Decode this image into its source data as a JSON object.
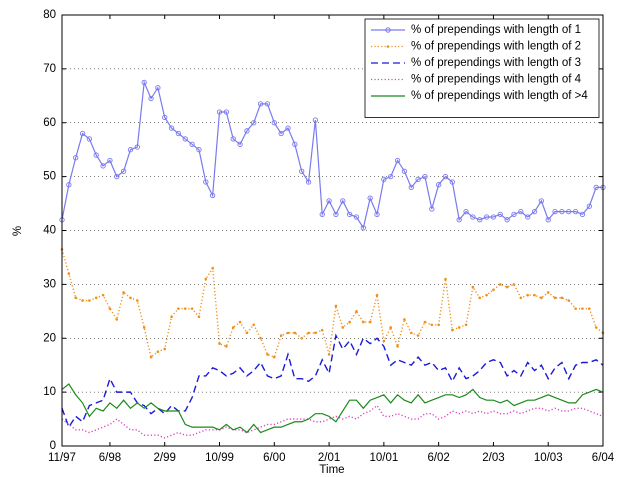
{
  "chart_data": {
    "type": "line",
    "x_label": "Time",
    "y_label": "%",
    "categories": [
      "11/97",
      null,
      null,
      null,
      null,
      null,
      null,
      "6/98",
      null,
      null,
      null,
      null,
      null,
      null,
      null,
      "2/99",
      null,
      null,
      null,
      null,
      null,
      null,
      null,
      "10/99",
      null,
      null,
      null,
      null,
      null,
      null,
      null,
      "6/00",
      null,
      null,
      null,
      null,
      null,
      null,
      null,
      "2/01",
      null,
      null,
      null,
      null,
      null,
      null,
      null,
      "10/01",
      null,
      null,
      null,
      null,
      null,
      null,
      null,
      "6/02",
      null,
      null,
      null,
      null,
      null,
      null,
      null,
      "2/03",
      null,
      null,
      null,
      null,
      null,
      null,
      null,
      "10/03",
      null,
      null,
      null,
      null,
      null,
      null,
      null,
      "6/04"
    ],
    "ylim": [
      0,
      80
    ],
    "yticks": [
      0,
      10,
      20,
      30,
      40,
      50,
      60,
      70,
      80
    ],
    "grid": true,
    "legend": "top-right",
    "series": [
      {
        "name": "% of prependings with length of 1",
        "color": "#7a7af0",
        "line_style": "solid",
        "marker": "circle",
        "values": [
          42,
          48.5,
          53.5,
          58,
          57,
          54,
          52,
          53,
          50,
          51,
          55,
          55.5,
          67.5,
          64.5,
          66.5,
          61,
          59,
          58,
          57,
          56,
          55,
          49,
          46.5,
          62,
          62,
          57,
          56,
          58.5,
          60,
          63.5,
          63.5,
          60,
          58,
          59,
          56,
          51,
          49,
          60.5,
          43,
          45.5,
          43,
          45.5,
          43,
          42.5,
          40.5,
          46,
          43,
          49.5,
          50,
          53,
          51,
          48,
          49.5,
          50,
          44,
          48.5,
          50,
          49,
          42,
          43.5,
          42.5,
          42,
          42.5,
          42.5,
          43,
          42,
          43,
          43.5,
          42.5,
          43.5,
          45.5,
          42,
          43.5,
          43.5,
          43.5,
          43.5,
          43,
          44.5,
          48,
          48
        ]
      },
      {
        "name": "% of prependings with length of 2",
        "color": "#f0901a",
        "line_style": "dotted",
        "marker": "dot",
        "values": [
          36.5,
          32,
          27.5,
          27,
          27,
          27.5,
          28,
          25.5,
          23.5,
          28.5,
          27.5,
          27,
          22,
          16.5,
          17.5,
          18,
          24,
          25.5,
          25.5,
          25.5,
          24,
          31,
          33,
          19,
          18.5,
          22,
          23,
          21,
          22.5,
          20,
          17,
          16.5,
          20.5,
          21,
          21,
          20,
          21,
          21,
          21.5,
          17,
          26,
          22,
          23,
          25,
          23,
          23,
          28,
          19.5,
          22,
          18.5,
          23.5,
          21,
          20.5,
          23,
          22.5,
          22.5,
          31,
          21.5,
          22,
          22.5,
          29.5,
          27.5,
          28,
          29,
          30,
          29.5,
          30,
          27.5,
          28,
          28,
          27.5,
          28.5,
          27.5,
          27.5,
          27,
          25.5,
          25.5,
          25.5,
          22,
          21
        ]
      },
      {
        "name": "% of prependings with length of 3",
        "color": "#1a1ad8",
        "line_style": "dashed",
        "values": [
          7,
          3.5,
          5.5,
          4.5,
          7.5,
          8,
          8.5,
          12.5,
          10,
          10,
          10,
          8,
          7.5,
          6,
          7,
          6,
          7.5,
          6.5,
          6.5,
          9,
          13,
          13,
          14.5,
          14,
          13,
          13.5,
          14.5,
          13,
          14,
          15.5,
          13,
          12.5,
          13,
          17,
          12.5,
          12.5,
          12,
          13,
          16,
          13.5,
          20.5,
          18,
          19.5,
          17,
          20,
          19,
          20,
          18.5,
          15,
          16,
          15.5,
          15,
          16.5,
          15,
          15.5,
          14,
          14.5,
          12,
          14.5,
          12.5,
          13,
          14,
          15.5,
          16,
          15.5,
          13,
          14,
          13,
          15.5,
          14,
          15,
          12.5,
          14.5,
          15.5,
          12.5,
          15,
          15.5,
          15.5,
          16,
          15
        ]
      },
      {
        "name": "% of prependings with length of 4",
        "color": "#e040c0",
        "line_style": "dotted",
        "values": [
          5,
          4,
          3,
          3,
          2.5,
          3,
          3.5,
          4,
          5,
          4,
          3,
          3,
          2,
          2,
          2,
          1.5,
          2,
          2.5,
          2,
          2,
          2.5,
          3,
          3,
          3,
          3.5,
          3,
          3,
          2.5,
          3,
          3.5,
          4,
          4,
          4.5,
          5,
          5,
          5,
          5,
          4.5,
          4.5,
          5,
          5.5,
          5,
          5.5,
          5,
          6,
          6.5,
          7.5,
          5.5,
          5.5,
          6,
          5.5,
          5,
          5,
          6,
          6,
          5,
          5.5,
          6.5,
          6,
          6.5,
          6,
          6.5,
          6,
          6.5,
          6,
          6,
          6.5,
          6,
          6.5,
          7,
          7,
          6.5,
          7,
          6.5,
          6.5,
          7,
          7,
          6.5,
          6,
          5.5
        ]
      },
      {
        "name": "% of prependings with length of >4",
        "color": "#1a8a1a",
        "line_style": "solid",
        "values": [
          10.5,
          11.5,
          9.5,
          8,
          5.5,
          7,
          6.5,
          8,
          7,
          8.5,
          7,
          8,
          7,
          8,
          7,
          6.5,
          6.5,
          6.5,
          4,
          3.5,
          3.5,
          3.5,
          3.5,
          3,
          4,
          3,
          3.5,
          2.5,
          4,
          2.5,
          3,
          3.5,
          3.5,
          4,
          4.5,
          4.5,
          5,
          6,
          6,
          5.5,
          4.5,
          6.5,
          8.5,
          8.5,
          7,
          8.5,
          9,
          9.5,
          8,
          9.5,
          8.5,
          8,
          9.5,
          8,
          8.5,
          9,
          9.5,
          9.5,
          9,
          9.5,
          10.5,
          9,
          8.5,
          8.5,
          8,
          8.5,
          7.5,
          8,
          8.5,
          8.5,
          9,
          9.5,
          9,
          8.5,
          8,
          8,
          9.5,
          10,
          10.5,
          10
        ]
      }
    ]
  }
}
